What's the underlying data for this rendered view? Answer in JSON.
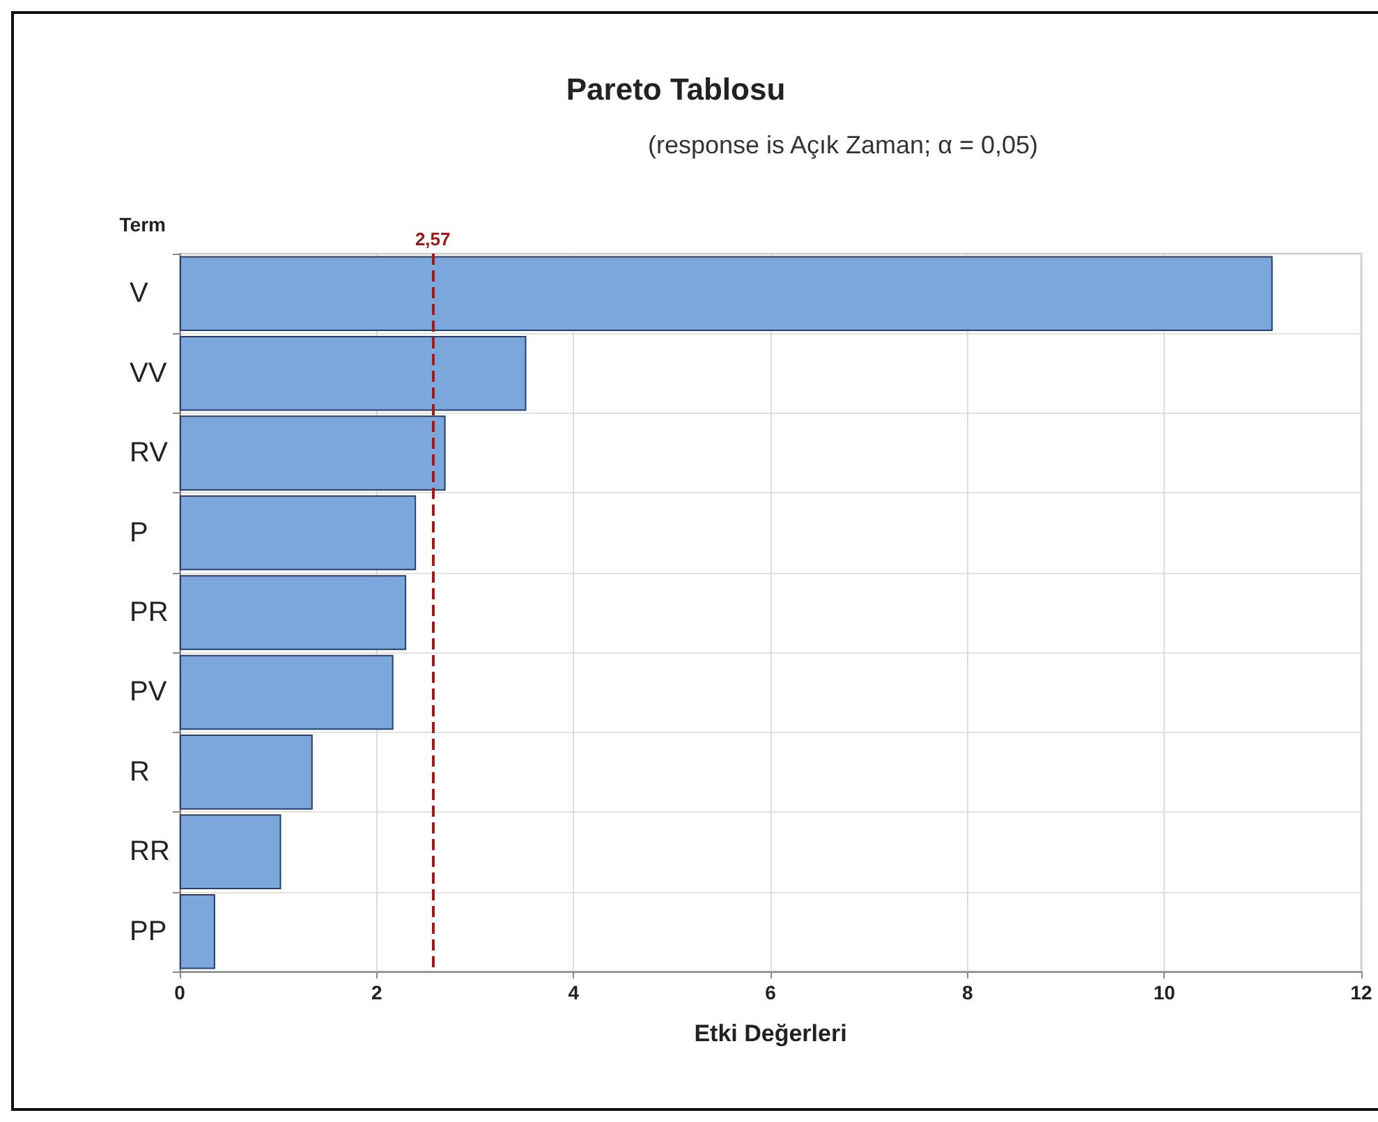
{
  "chart_data": {
    "type": "bar",
    "orientation": "horizontal",
    "title": "Pareto Tablosu",
    "subtitle": "(response is Açık Zaman; α = 0,05)",
    "xlabel": "Etki Değerleri",
    "ylabel": "Term",
    "categories": [
      "V",
      "VV",
      "RV",
      "P",
      "PR",
      "PV",
      "R",
      "RR",
      "PP"
    ],
    "values": [
      11.1,
      3.52,
      2.7,
      2.4,
      2.3,
      2.17,
      1.35,
      1.03,
      0.36
    ],
    "color": "#7ba7dc",
    "xlim": [
      0,
      12
    ],
    "xticks": [
      0,
      2,
      4,
      6,
      8,
      10,
      12
    ],
    "grid": true,
    "ref_lines": [
      {
        "axis": "x",
        "value": 2.57,
        "label": "2,57",
        "color": "#a01c1c",
        "line_style": "dashed"
      }
    ]
  }
}
